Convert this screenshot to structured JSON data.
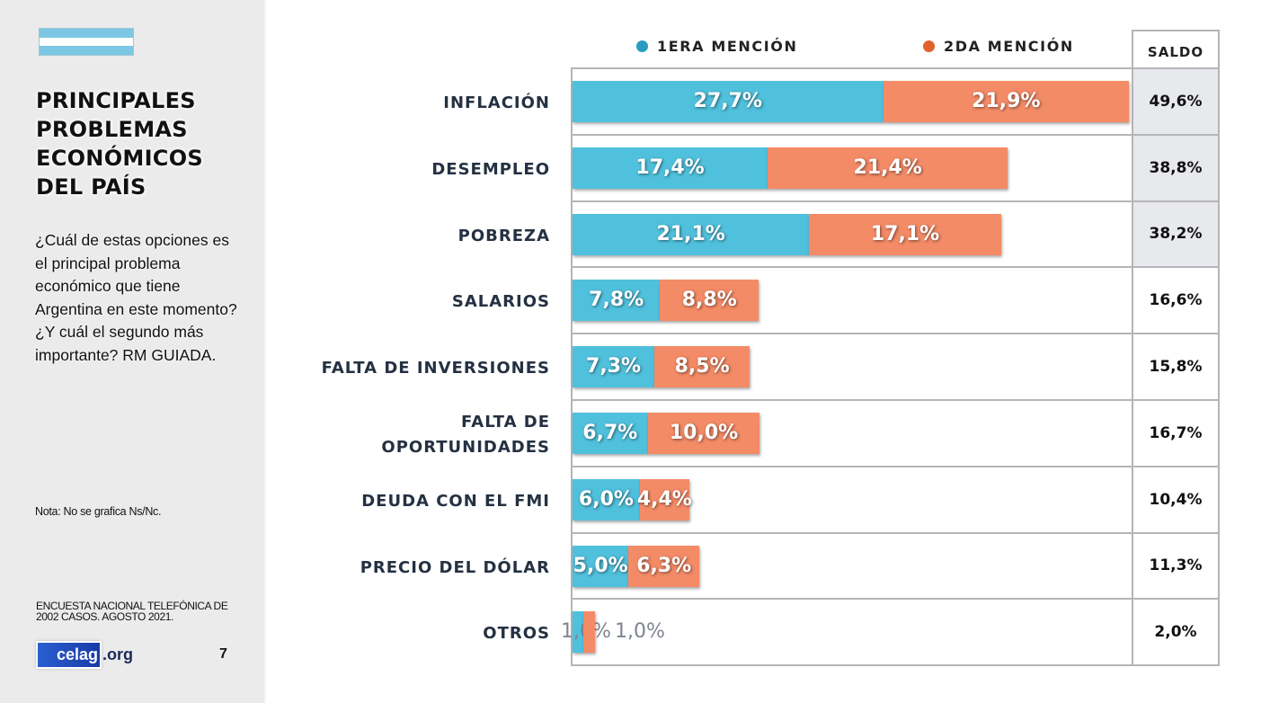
{
  "sidebar": {
    "title_lines": [
      "PRINCIPALES",
      "PROBLEMAS",
      "ECONÓMICOS",
      "DEL PAÍS"
    ],
    "question": "¿Cuál de estas opciones es el principal problema económico que tiene Argentina en este momento? ¿Y cuál el segundo más importante? RM GUIADA.",
    "note": "Nota: No se grafica Ns/Nc.",
    "source": "ENCUESTA NACIONAL TELEFÓNICA DE 2002 CASOS. AGOSTO 2021.",
    "logo_main": "celag",
    "logo_suffix": ".org",
    "page_number": "7",
    "flag_icon": "argentina-flag-icon"
  },
  "colors": {
    "first_mention": "#50c1dd",
    "second_mention": "#f48b67",
    "legend_first_dot": "#2a9bc0",
    "legend_second_dot": "#e0622c"
  },
  "chart_data": {
    "type": "bar",
    "orientation": "horizontal",
    "stacked": true,
    "title": "PRINCIPALES PROBLEMAS ECONÓMICOS DEL PAÍS",
    "legend_position": "top",
    "categories": [
      "INFLACIÓN",
      "DESEMPLEO",
      "POBREZA",
      "SALARIOS",
      "FALTA DE INVERSIONES",
      "FALTA DE OPORTUNIDADES",
      "DEUDA CON EL FMI",
      "PRECIO DEL DÓLAR",
      "OTROS"
    ],
    "category_display": [
      [
        "INFLACIÓN"
      ],
      [
        "DESEMPLEO"
      ],
      [
        "POBREZA"
      ],
      [
        "SALARIOS"
      ],
      [
        "FALTA DE INVERSIONES"
      ],
      [
        "FALTA DE",
        "OPORTUNIDADES"
      ],
      [
        "DEUDA CON EL FMI"
      ],
      [
        "PRECIO DEL DÓLAR"
      ],
      [
        "OTROS"
      ]
    ],
    "series": [
      {
        "name": "1ERA MENCIÓN",
        "values": [
          27.7,
          17.4,
          21.1,
          7.8,
          7.3,
          6.7,
          6.0,
          5.0,
          1.0
        ],
        "labels": [
          "27,7%",
          "17,4%",
          "21,1%",
          "7,8%",
          "7,3%",
          "6,7%",
          "6,0%",
          "5,0%",
          "1,0%"
        ]
      },
      {
        "name": "2DA MENCIÓN",
        "values": [
          21.9,
          21.4,
          17.1,
          8.8,
          8.5,
          10.0,
          4.4,
          6.3,
          1.0
        ],
        "labels": [
          "21,9%",
          "21,4%",
          "17,1%",
          "8,8%",
          "8,5%",
          "10,0%",
          "4,4%",
          "6,3%",
          "1,0%"
        ]
      }
    ],
    "saldo": {
      "header": "SALDO",
      "values": [
        49.6,
        38.8,
        38.2,
        16.6,
        15.8,
        16.7,
        10.4,
        11.3,
        2.0
      ],
      "labels": [
        "49,6%",
        "38,8%",
        "38,2%",
        "16,6%",
        "15,8%",
        "16,7%",
        "10,4%",
        "11,3%",
        "2,0%"
      ],
      "highlighted_rows": [
        0,
        1,
        2
      ]
    },
    "xlim": [
      0,
      50
    ],
    "xlabel": "",
    "ylabel": "",
    "grid": false
  }
}
